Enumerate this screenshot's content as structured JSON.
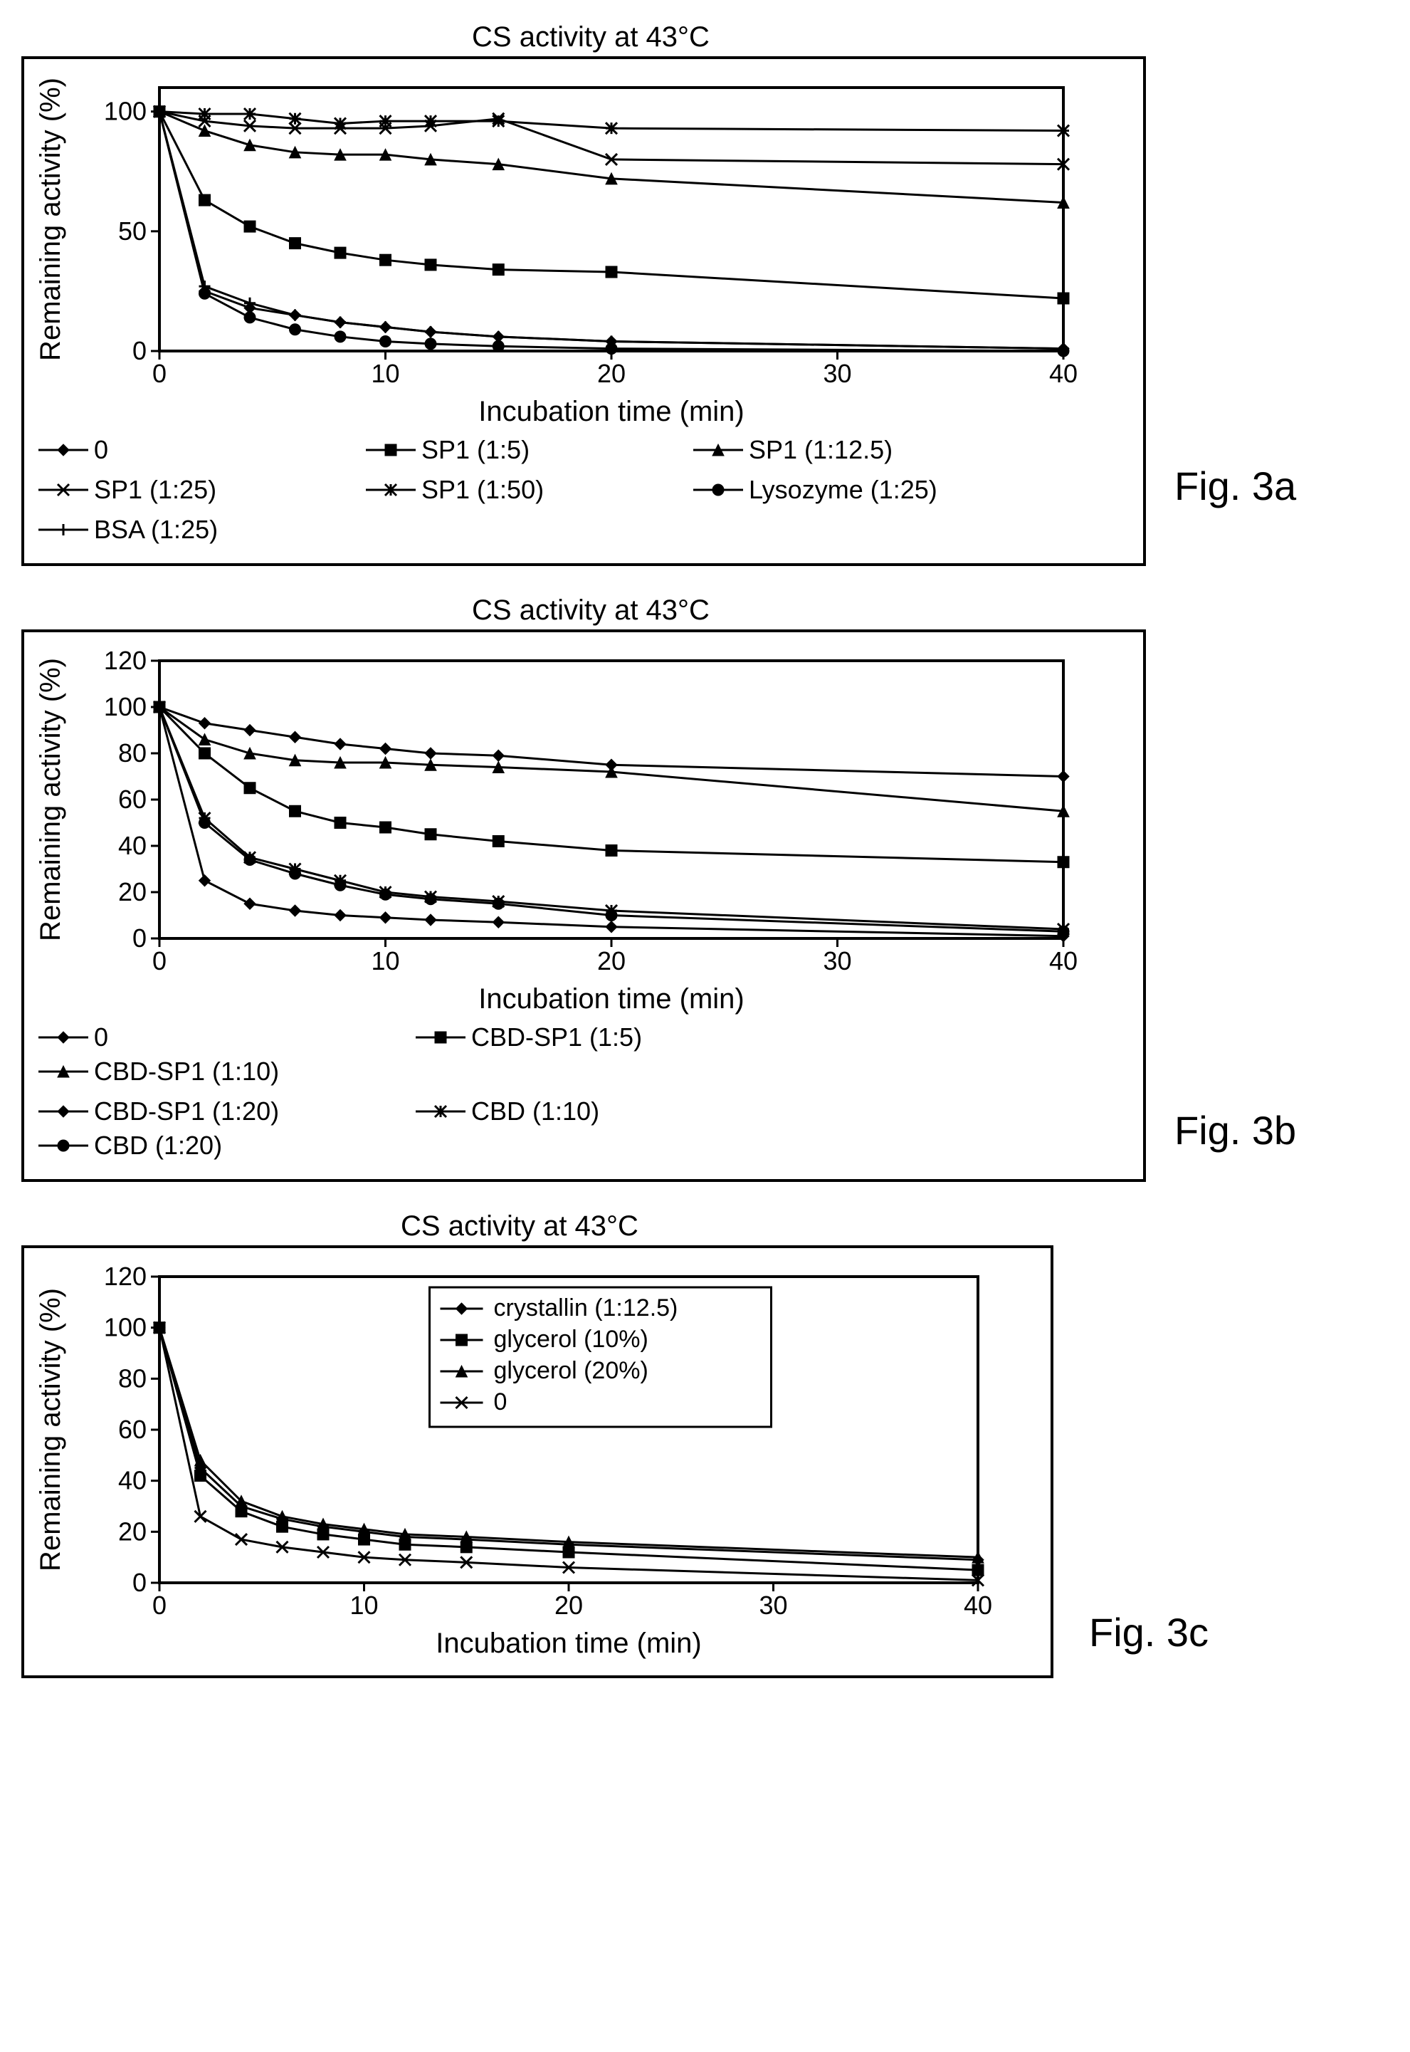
{
  "figA": {
    "title": "CS activity at 43°C",
    "label": "Fig. 3a",
    "ylabel": "Remaining activity (%)",
    "xlabel": "Incubation time (min)",
    "xlim": [
      0,
      40
    ],
    "ylim": [
      0,
      110
    ],
    "xticks": [
      0,
      10,
      20,
      30,
      40
    ],
    "yticks": [
      0,
      50,
      100
    ],
    "label_fontsize": 40,
    "tick_fontsize": 36,
    "line_width": 3,
    "series": [
      {
        "name": "0",
        "marker": "diamond",
        "x": [
          0,
          2,
          4,
          6,
          8,
          10,
          12,
          15,
          20,
          40
        ],
        "y": [
          100,
          25,
          18,
          15,
          12,
          10,
          8,
          6,
          4,
          1
        ]
      },
      {
        "name": "SP1 (1:5)",
        "marker": "square",
        "x": [
          0,
          2,
          4,
          6,
          8,
          10,
          12,
          15,
          20,
          40
        ],
        "y": [
          100,
          63,
          52,
          45,
          41,
          38,
          36,
          34,
          33,
          22
        ]
      },
      {
        "name": "SP1 (1:12.5)",
        "marker": "triangle",
        "x": [
          0,
          2,
          4,
          6,
          8,
          10,
          12,
          15,
          20,
          40
        ],
        "y": [
          100,
          92,
          86,
          83,
          82,
          82,
          80,
          78,
          72,
          62
        ]
      },
      {
        "name": "SP1 (1:25)",
        "marker": "x",
        "x": [
          0,
          2,
          4,
          6,
          8,
          10,
          12,
          15,
          20,
          40
        ],
        "y": [
          100,
          96,
          94,
          93,
          93,
          93,
          94,
          97,
          80,
          78
        ]
      },
      {
        "name": "SP1 (1:50)",
        "marker": "star",
        "x": [
          0,
          2,
          4,
          6,
          8,
          10,
          12,
          15,
          20,
          40
        ],
        "y": [
          100,
          99,
          99,
          97,
          95,
          96,
          96,
          96,
          93,
          92
        ]
      },
      {
        "name": "Lysozyme (1:25)",
        "marker": "circle",
        "x": [
          0,
          2,
          4,
          6,
          8,
          10,
          12,
          15,
          20,
          40
        ],
        "y": [
          100,
          24,
          14,
          9,
          6,
          4,
          3,
          2,
          1,
          0
        ]
      },
      {
        "name": "BSA (1:25)",
        "marker": "plus",
        "x": [
          0,
          2,
          4,
          6,
          8,
          10,
          12,
          15,
          20,
          40
        ],
        "y": [
          100,
          27,
          20,
          15,
          12,
          10,
          8,
          6,
          4,
          1
        ]
      }
    ],
    "legend_layout": [
      [
        "0",
        "SP1 (1:5)",
        "SP1 (1:12.5)"
      ],
      [
        "SP1 (1:25)",
        "SP1 (1:50)",
        "Lysozyme (1:25)"
      ],
      [
        "BSA (1:25)"
      ]
    ]
  },
  "figB": {
    "title": "CS activity at 43°C",
    "label": "Fig. 3b",
    "ylabel": "Remaining activity (%)",
    "xlabel": "Incubation time (min)",
    "xlim": [
      0,
      40
    ],
    "ylim": [
      0,
      120
    ],
    "xticks": [
      0,
      10,
      20,
      30,
      40
    ],
    "yticks": [
      0,
      20,
      40,
      60,
      80,
      100,
      120
    ],
    "label_fontsize": 40,
    "tick_fontsize": 36,
    "line_width": 3,
    "series": [
      {
        "name": "0",
        "marker": "diamond",
        "x": [
          0,
          2,
          4,
          6,
          8,
          10,
          12,
          15,
          20,
          40
        ],
        "y": [
          100,
          25,
          15,
          12,
          10,
          9,
          8,
          7,
          5,
          1
        ]
      },
      {
        "name": "CBD-SP1 (1:5)",
        "marker": "square",
        "x": [
          0,
          2,
          4,
          6,
          8,
          10,
          12,
          15,
          20,
          40
        ],
        "y": [
          100,
          80,
          65,
          55,
          50,
          48,
          45,
          42,
          38,
          33
        ]
      },
      {
        "name": "CBD-SP1 (1:10)",
        "marker": "triangle",
        "x": [
          0,
          2,
          4,
          6,
          8,
          10,
          12,
          15,
          20,
          40
        ],
        "y": [
          100,
          86,
          80,
          77,
          76,
          76,
          75,
          74,
          72,
          55
        ]
      },
      {
        "name": "CBD-SP1 (1:20)",
        "marker": "diamond-filled",
        "x": [
          0,
          2,
          4,
          6,
          8,
          10,
          12,
          15,
          20,
          40
        ],
        "y": [
          100,
          93,
          90,
          87,
          84,
          82,
          80,
          79,
          75,
          70
        ]
      },
      {
        "name": "CBD (1:10)",
        "marker": "star",
        "x": [
          0,
          2,
          4,
          6,
          8,
          10,
          12,
          15,
          20,
          40
        ],
        "y": [
          100,
          52,
          35,
          30,
          25,
          20,
          18,
          16,
          12,
          4
        ]
      },
      {
        "name": "CBD (1:20)",
        "marker": "circle",
        "x": [
          0,
          2,
          4,
          6,
          8,
          10,
          12,
          15,
          20,
          40
        ],
        "y": [
          100,
          50,
          34,
          28,
          23,
          19,
          17,
          15,
          10,
          3
        ]
      }
    ],
    "legend_layout": [
      [
        "0",
        "CBD-SP1 (1:5)",
        "CBD-SP1 (1:10)"
      ],
      [
        "CBD-SP1 (1:20)",
        "CBD (1:10)",
        "CBD (1:20)"
      ]
    ]
  },
  "figC": {
    "title": "CS activity at 43°C",
    "label": "Fig. 3c",
    "ylabel": "Remaining activity (%)",
    "xlabel": "Incubation time (min)",
    "xlim": [
      0,
      40
    ],
    "ylim": [
      0,
      120
    ],
    "xticks": [
      0,
      10,
      20,
      30,
      40
    ],
    "yticks": [
      0,
      20,
      40,
      60,
      80,
      100,
      120
    ],
    "label_fontsize": 40,
    "tick_fontsize": 36,
    "line_width": 3,
    "series": [
      {
        "name": "crystallin (1:12.5)",
        "marker": "diamond",
        "x": [
          0,
          2,
          4,
          6,
          8,
          10,
          12,
          15,
          20,
          40
        ],
        "y": [
          100,
          45,
          30,
          25,
          22,
          20,
          18,
          17,
          15,
          9
        ]
      },
      {
        "name": "glycerol (10%)",
        "marker": "square",
        "x": [
          0,
          2,
          4,
          6,
          8,
          10,
          12,
          15,
          20,
          40
        ],
        "y": [
          100,
          42,
          28,
          22,
          19,
          17,
          15,
          14,
          12,
          5
        ]
      },
      {
        "name": "glycerol (20%)",
        "marker": "triangle",
        "x": [
          0,
          2,
          4,
          6,
          8,
          10,
          12,
          15,
          20,
          40
        ],
        "y": [
          100,
          48,
          32,
          26,
          23,
          21,
          19,
          18,
          16,
          10
        ]
      },
      {
        "name": "0",
        "marker": "x",
        "x": [
          0,
          2,
          4,
          6,
          8,
          10,
          12,
          15,
          20,
          40
        ],
        "y": [
          100,
          26,
          17,
          14,
          12,
          10,
          9,
          8,
          6,
          1
        ]
      }
    ],
    "legend_inside": true,
    "legend_layout": [
      [
        "crystallin (1:12.5)"
      ],
      [
        "glycerol (10%)"
      ],
      [
        "glycerol (20%)"
      ],
      [
        "0"
      ]
    ]
  },
  "colors": {
    "line": "#000000",
    "marker_fill": "#000000",
    "frame": "#000000",
    "legend_border": "#000000"
  }
}
